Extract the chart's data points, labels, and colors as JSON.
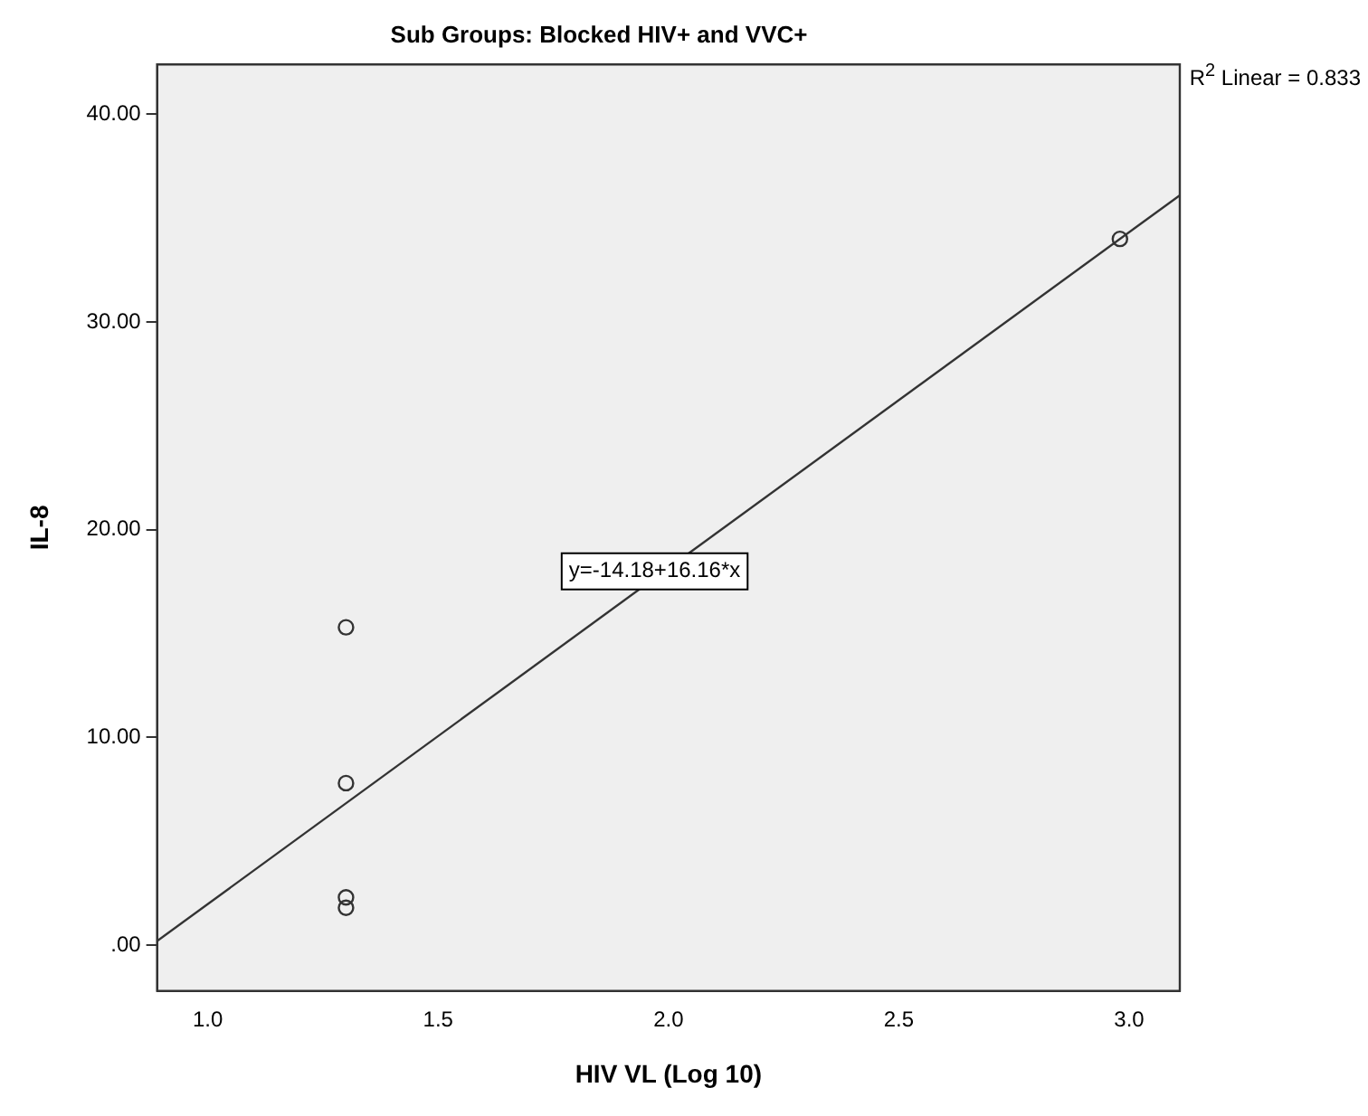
{
  "chart_data": {
    "type": "scatter",
    "title": "Sub Groups: Blocked HIV+ and VVC+",
    "xlabel": "HIV VL (Log 10)",
    "ylabel": "IL-8",
    "series": [
      {
        "type": "scatter",
        "color": "#333333",
        "x": [
          1.3,
          1.3,
          1.3,
          1.3,
          2.98
        ],
        "values": [
          15.3,
          7.8,
          2.3,
          1.8,
          34.0
        ],
        "marker": "circle"
      },
      {
        "type": "line",
        "color": "#333333",
        "x": [
          0.89,
          3.11
        ],
        "values": [
          0.2,
          36.1
        ],
        "marker": "none"
      }
    ],
    "annotations": [
      {
        "text": "y=-14.18+16.16*x",
        "x": 1.97,
        "y": 18.0
      },
      "R$^{2}$ Linear = 0.833"
    ],
    "xlim": [
      0.89,
      3.11
    ],
    "xticks": [
      {
        "value": 1,
        "label": "1.0"
      },
      {
        "value": 1.5,
        "label": "1.5"
      },
      {
        "value": 2,
        "label": "2.0"
      },
      {
        "value": 2.5,
        "label": "2.5"
      },
      {
        "value": 3,
        "label": "3.0"
      }
    ],
    "ylim": [
      -2.2,
      42.4
    ],
    "yticks": [
      {
        "value": 0,
        "label": ".00"
      },
      {
        "value": 10,
        "label": "10.00"
      },
      {
        "value": 20,
        "label": "20.00"
      },
      {
        "value": 30,
        "label": "30.00"
      },
      {
        "value": 40,
        "label": "40.00"
      }
    ],
    "grid": false,
    "legend": false
  }
}
